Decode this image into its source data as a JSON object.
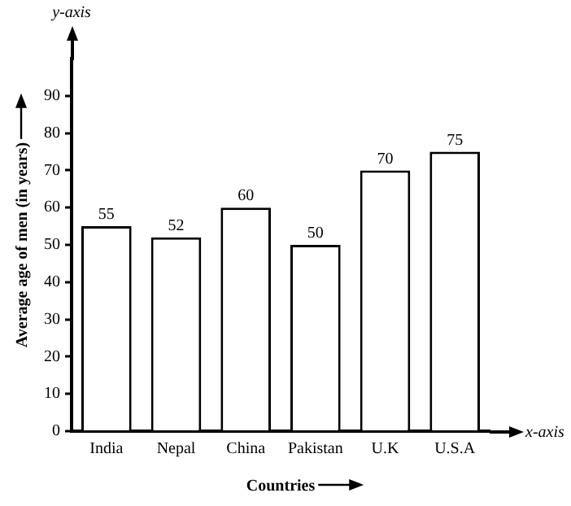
{
  "chart_data": {
    "type": "bar",
    "categories": [
      "India",
      "Nepal",
      "China",
      "Pakistan",
      "U.K",
      "U.S.A"
    ],
    "values": [
      55,
      52,
      60,
      50,
      70,
      75
    ],
    "color": "#ffffff",
    "xlabel": "Countries",
    "ylabel": "Average age of men (in years)",
    "ylim": [
      0,
      100
    ],
    "yticks": [
      0,
      10,
      20,
      30,
      40,
      50,
      60,
      70,
      80,
      90
    ],
    "grid": false,
    "legend": false,
    "data_labels": true,
    "annotations": [
      "y-axis",
      "x-axis"
    ]
  }
}
